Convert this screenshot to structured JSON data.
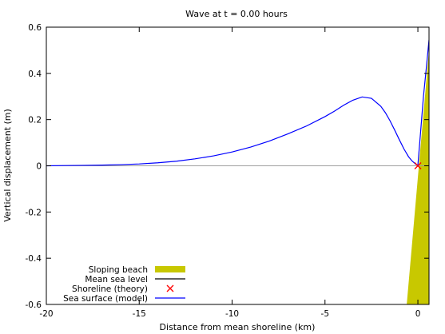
{
  "chart_data": {
    "type": "line",
    "title": "Wave at t = 0.00 hours",
    "xlabel": "Distance from mean shoreline (km)",
    "ylabel": "Vertical displacement (m)",
    "xlim": [
      -20,
      0.6
    ],
    "ylim": [
      -0.6,
      0.6
    ],
    "xticks": [
      -20,
      -15,
      -10,
      -5,
      0
    ],
    "xtick_labels": [
      "-20",
      "-15",
      "-10",
      "-5",
      "0"
    ],
    "yticks": [
      -0.6,
      -0.4,
      -0.2,
      0,
      0.2,
      0.4,
      0.6
    ],
    "ytick_labels": [
      "-0.6",
      "-0.4",
      "-0.2",
      "0",
      "0.2",
      "0.4",
      "0.6"
    ],
    "grid": false,
    "legend_position": "bottom-left",
    "series": [
      {
        "name": "Sloping beach",
        "kind": "filled-polygon",
        "color": "#c8c800",
        "x": [
          -0.6,
          0.6,
          0.6
        ],
        "y": [
          -0.6,
          0.5,
          -0.6
        ]
      },
      {
        "name": "Mean sea level",
        "kind": "line",
        "color": "#000000",
        "x": [
          -20,
          0.6
        ],
        "y": [
          0,
          0
        ]
      },
      {
        "name": "Shoreline (theory)",
        "kind": "marker",
        "color": "#ff0000",
        "x": [
          0
        ],
        "y": [
          0
        ]
      },
      {
        "name": "Sea surface (model)",
        "kind": "line",
        "color": "#0000ff",
        "x": [
          -20,
          -19,
          -18,
          -17,
          -16,
          -15,
          -14,
          -13,
          -12,
          -11,
          -10,
          -9,
          -8,
          -7,
          -6,
          -5,
          -4.5,
          -4,
          -3.5,
          -3,
          -2.5,
          -2,
          -1.75,
          -1.5,
          -1.25,
          -1,
          -0.75,
          -0.5,
          -0.3,
          -0.1,
          0,
          0.1,
          0.2,
          0.3,
          0.45,
          0.6
        ],
        "y": [
          0.0,
          0.001,
          0.002,
          0.003,
          0.005,
          0.008,
          0.013,
          0.02,
          0.03,
          0.043,
          0.06,
          0.081,
          0.107,
          0.138,
          0.172,
          0.213,
          0.236,
          0.262,
          0.284,
          0.298,
          0.292,
          0.258,
          0.23,
          0.195,
          0.155,
          0.113,
          0.073,
          0.039,
          0.02,
          0.006,
          0.003,
          0.1,
          0.2,
          0.3,
          0.42,
          0.545
        ]
      }
    ]
  }
}
